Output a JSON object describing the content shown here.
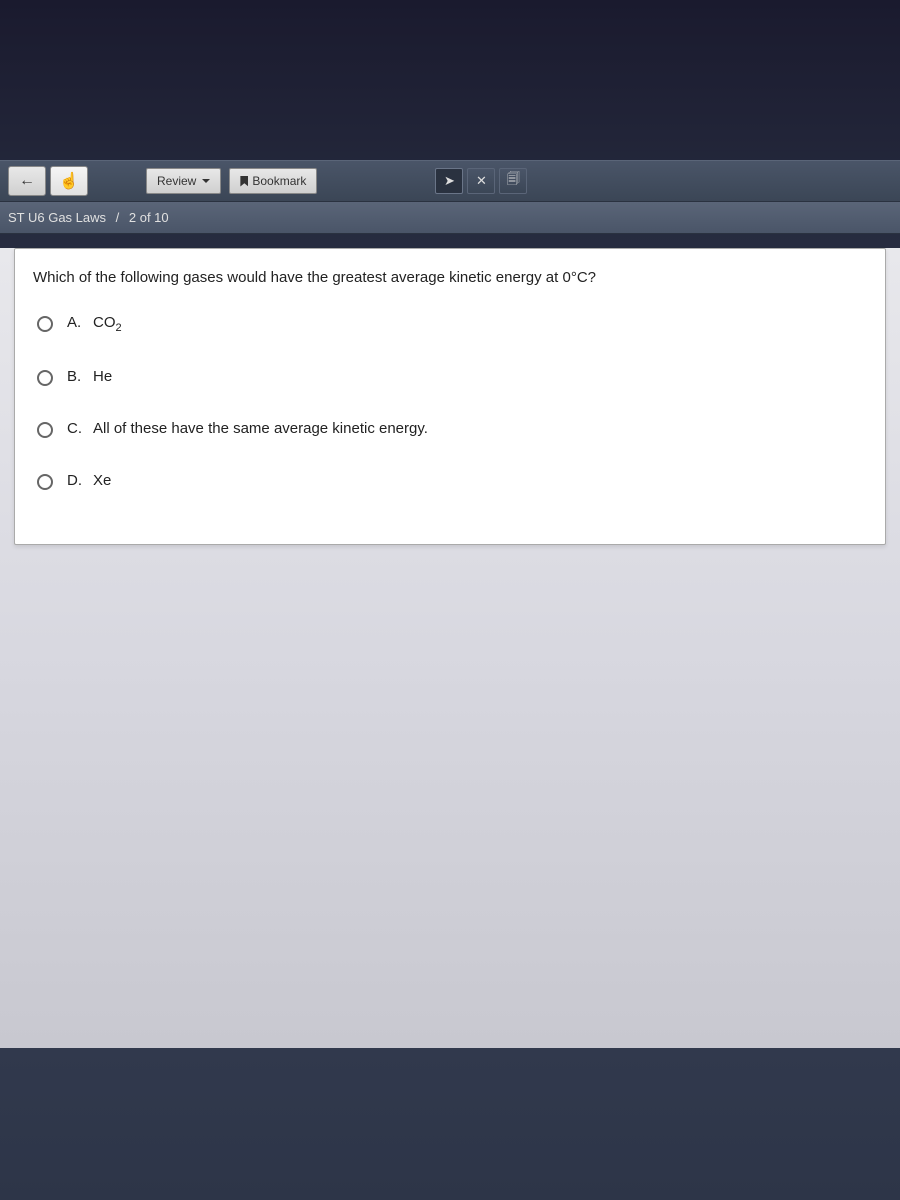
{
  "toolbar": {
    "review_label": "Review",
    "bookmark_label": "Bookmark"
  },
  "breadcrumb": {
    "title": "ST U6 Gas Laws",
    "separator": "/",
    "progress": "2 of 10"
  },
  "question": {
    "text": "Which of the following gases would have the greatest average kinetic energy at 0°C?",
    "options": [
      {
        "letter": "A.",
        "text_html": "CO<sub>2</sub>"
      },
      {
        "letter": "B.",
        "text_html": "He"
      },
      {
        "letter": "C.",
        "text_html": "All of these have the same average kinetic energy."
      },
      {
        "letter": "D.",
        "text_html": "Xe"
      }
    ]
  },
  "colors": {
    "toolbar_bg": "#4a5568",
    "content_bg": "#e0e0e8",
    "panel_bg": "#ffffff",
    "text": "#222222"
  }
}
